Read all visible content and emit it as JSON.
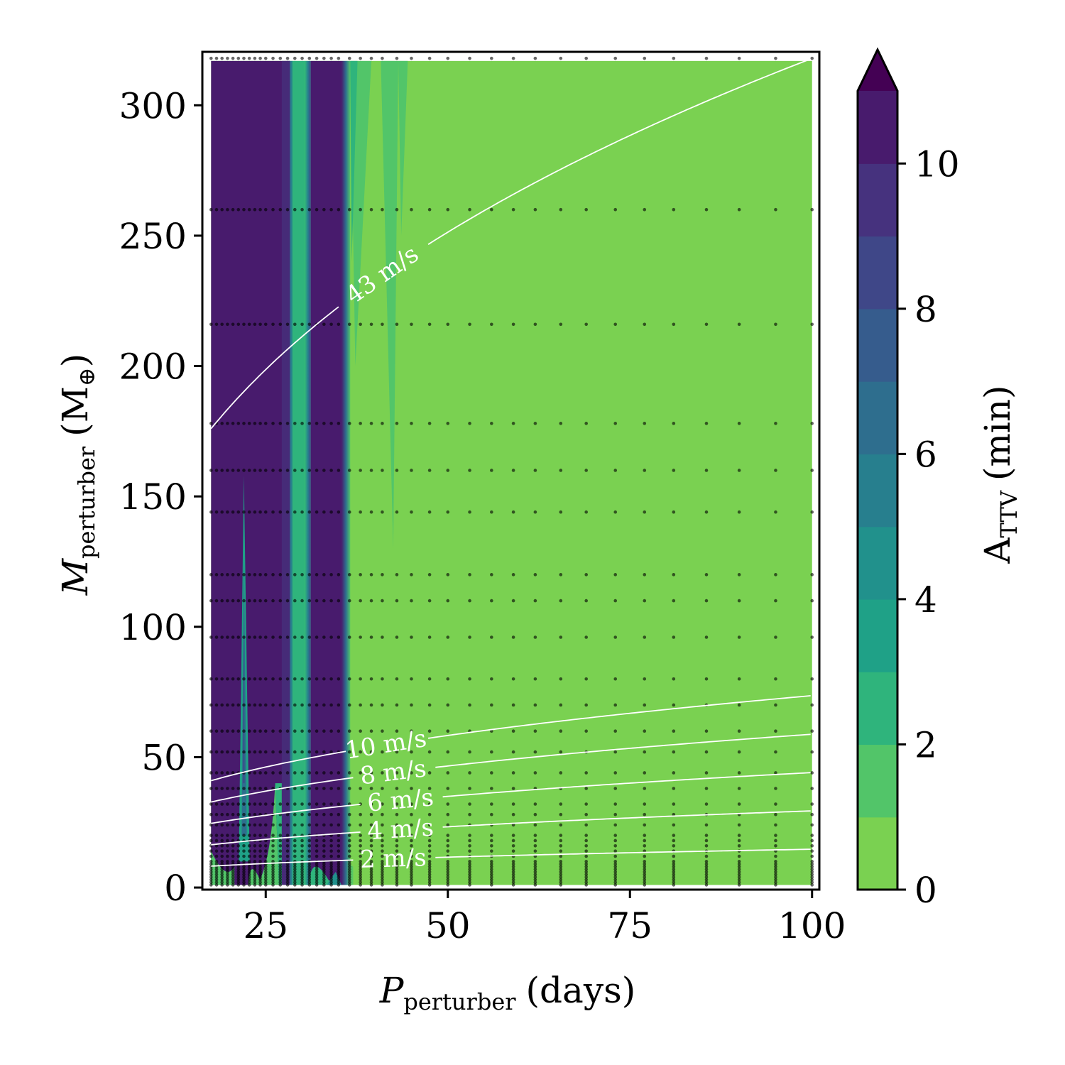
{
  "chart_data": {
    "type": "heatmap",
    "x_axis": {
      "label_main": "P",
      "label_sub": "perturber",
      "label_unit": "(days)",
      "ticks": [
        25,
        50,
        75,
        100
      ],
      "range": [
        16.3,
        101
      ]
    },
    "y_axis": {
      "label_main": "M",
      "label_sub": "perturber",
      "label_unit_open": "(M",
      "label_unit_sub": "⊕",
      "label_unit_close": ")",
      "ticks": [
        0,
        50,
        100,
        150,
        200,
        250,
        300
      ],
      "range": [
        -0.8,
        320.5
      ]
    },
    "colorbar": {
      "label_main": "A",
      "label_sub": "TTV",
      "label_unit": "(min)",
      "ticks": [
        0,
        2,
        4,
        6,
        8,
        10
      ],
      "levels": [
        0,
        1,
        2,
        3,
        4,
        5,
        6,
        7,
        8,
        9,
        10,
        11
      ],
      "extend": "max",
      "colors": [
        "#7ad151",
        "#52c569",
        "#2fb47c",
        "#1fa187",
        "#21918c",
        "#277f8e",
        "#2e6e8e",
        "#365c8d",
        "#3f4788",
        "#46327e",
        "#481b6d",
        "#440154"
      ]
    },
    "data_region": {
      "x_range": [
        17.5,
        100
      ],
      "y_range": [
        1,
        317
      ]
    },
    "saturated_bands": [
      {
        "x0": 17.5,
        "x1": 28.3,
        "level": ">10"
      },
      {
        "x0": 31.2,
        "x1": 35.4,
        "level": ">10"
      }
    ],
    "resonance_spikes": [
      {
        "x": 22.0,
        "tip_mass": 158,
        "peak_level": "~6"
      },
      {
        "x": 42.5,
        "tip_mass": 130,
        "peak_level": "~1-2"
      }
    ],
    "grid_points": {
      "periods": [
        17.5,
        18.25,
        19.0,
        19.75,
        20.5,
        21.25,
        22.0,
        22.75,
        23.5,
        24.25,
        25.0,
        26.0,
        27.0,
        28.0,
        29.0,
        30.0,
        31.0,
        32.0,
        33.0,
        34.0,
        35.0,
        36.5,
        38.0,
        39.5,
        41.0,
        43.0,
        45.0,
        47.5,
        50.0,
        53.0,
        56.0,
        59.0,
        62.0,
        65.5,
        69.0,
        73.0,
        77.0,
        81.0,
        85.5,
        90.0,
        95.0,
        100.0
      ],
      "masses": [
        1,
        2,
        3,
        4,
        5,
        6,
        7,
        8,
        9,
        10,
        12,
        14,
        16,
        18,
        20,
        24,
        28,
        32,
        38,
        44,
        52,
        60,
        70,
        80,
        96,
        110,
        120,
        144,
        160,
        178,
        216,
        260,
        318
      ]
    },
    "rv_contours": [
      {
        "label": "2 m/s",
        "K": 2,
        "mass_at_17_5": 8.2,
        "mass_at_100": 14.7,
        "label_period": 42.5
      },
      {
        "label": "4 m/s",
        "K": 4,
        "mass_at_17_5": 16.4,
        "mass_at_100": 29.4,
        "label_period": 43.5
      },
      {
        "label": "6 m/s",
        "K": 6,
        "mass_at_17_5": 24.6,
        "mass_at_100": 44.1,
        "label_period": 43.5
      },
      {
        "label": "8 m/s",
        "K": 8,
        "mass_at_17_5": 32.8,
        "mass_at_100": 58.8,
        "label_period": 42.5
      },
      {
        "label": "10 m/s",
        "K": 10,
        "mass_at_17_5": 41.0,
        "mass_at_100": 73.6,
        "label_period": 41.5
      },
      {
        "label": "43 m/s",
        "K": 43,
        "mass_at_17_5": 176,
        "mass_at_100": 318,
        "label_period": 41.0
      }
    ]
  }
}
